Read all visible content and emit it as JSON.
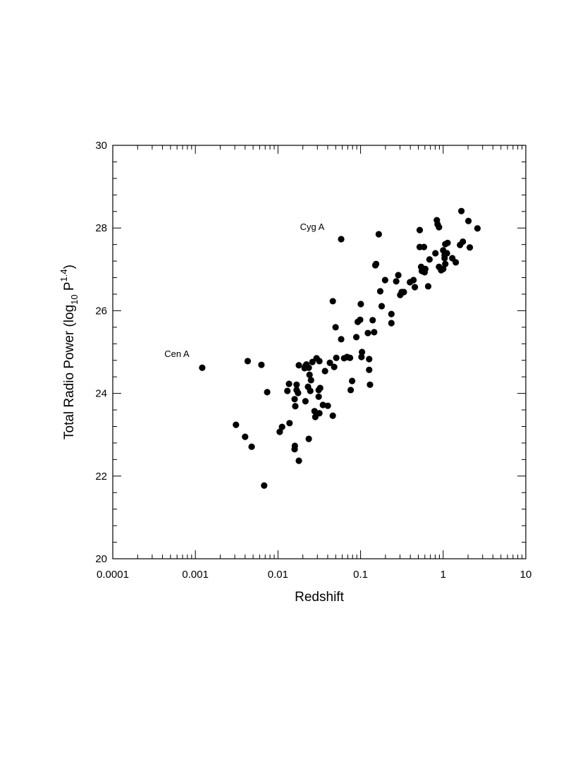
{
  "chart_data": {
    "type": "scatter",
    "x_label": "Redshift",
    "y_label": {
      "main": "Total Radio Power (log",
      "sub": "10",
      "mid": " P",
      "sup": "1.4",
      "end": ")"
    },
    "annotations": [
      "Cyg A",
      "Cen A"
    ],
    "xscale": "log",
    "xlim": [
      0.0001,
      10
    ],
    "xticks": [
      0.0001,
      0.001,
      0.01,
      0.1,
      1,
      10
    ],
    "ylim": [
      20,
      30
    ],
    "yticks": [
      20,
      22,
      24,
      26,
      28,
      30
    ],
    "color": "#000000",
    "grid": false,
    "x": [
      0.00121,
      0.0031,
      0.004,
      0.0043,
      0.0048,
      0.0063,
      0.0068,
      0.0074,
      0.0105,
      0.0112,
      0.0136,
      0.013,
      0.0138,
      0.0159,
      0.0162,
      0.0159,
      0.016,
      0.0168,
      0.0168,
      0.0175,
      0.0179,
      0.0179,
      0.021,
      0.0215,
      0.0215,
      0.0221,
      0.0231,
      0.0236,
      0.0236,
      0.0241,
      0.0246,
      0.0251,
      0.0261,
      0.0277,
      0.0283,
      0.0293,
      0.0311,
      0.0311,
      0.0317,
      0.0324,
      0.0317,
      0.035,
      0.0371,
      0.0401,
      0.0425,
      0.0461,
      0.0479,
      0.0461,
      0.0498,
      0.0508,
      0.0582,
      0.0582,
      0.0632,
      0.0686,
      0.0744,
      0.0759,
      0.079,
      0.0888,
      0.0924,
      0.0988,
      0.1006,
      0.1026,
      0.104,
      0.1226,
      0.127,
      0.127,
      0.13,
      0.14,
      0.146,
      0.151,
      0.154,
      0.166,
      0.173,
      0.18,
      0.198,
      0.236,
      0.236,
      0.27,
      0.286,
      0.302,
      0.314,
      0.334,
      0.396,
      0.437,
      0.454,
      0.52,
      0.52,
      0.541,
      0.552,
      0.585,
      0.585,
      0.596,
      0.608,
      0.658,
      0.683,
      0.805,
      0.838,
      0.855,
      0.89,
      0.89,
      0.945,
      1.0,
      1.0,
      1.04,
      1.04,
      1.06,
      1.06,
      1.11,
      1.13,
      1.29,
      1.42,
      1.6,
      1.66,
      1.73,
      2.02,
      2.1,
      2.6
    ],
    "values": [
      24.62,
      23.24,
      22.95,
      24.78,
      22.71,
      24.69,
      21.77,
      24.03,
      23.07,
      23.19,
      24.23,
      24.06,
      23.28,
      23.86,
      23.69,
      22.65,
      22.73,
      24.21,
      24.08,
      24.01,
      24.68,
      22.37,
      24.61,
      24.66,
      23.81,
      24.7,
      24.16,
      24.62,
      22.9,
      24.45,
      24.06,
      24.32,
      24.76,
      23.57,
      23.43,
      24.85,
      24.08,
      23.92,
      24.78,
      24.13,
      23.52,
      23.72,
      24.54,
      23.7,
      24.74,
      23.46,
      24.64,
      26.23,
      25.6,
      24.86,
      27.73,
      25.31,
      24.85,
      24.88,
      24.86,
      24.08,
      24.3,
      25.36,
      25.73,
      25.78,
      26.16,
      24.88,
      25.0,
      25.46,
      24.83,
      24.57,
      24.21,
      25.77,
      25.48,
      27.1,
      27.13,
      27.85,
      26.47,
      26.11,
      26.74,
      25.92,
      25.7,
      26.71,
      26.86,
      26.38,
      26.45,
      26.45,
      26.69,
      26.74,
      26.57,
      27.95,
      27.54,
      27.06,
      26.96,
      27.54,
      27.0,
      26.93,
      27.01,
      26.59,
      27.24,
      27.39,
      28.19,
      28.09,
      28.02,
      27.06,
      26.98,
      27.46,
      27.01,
      27.27,
      27.34,
      27.13,
      27.61,
      27.39,
      27.64,
      27.27,
      27.17,
      27.59,
      28.41,
      27.67,
      28.17,
      27.53,
      27.99
    ]
  }
}
